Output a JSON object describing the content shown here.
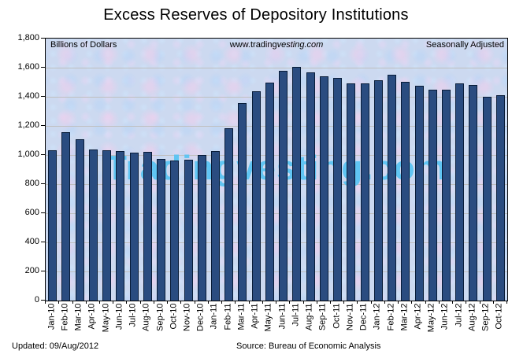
{
  "title": "Excess Reserves of Depository Institutions",
  "header": {
    "left": "Billions of Dollars",
    "center_prefix": "www.trading",
    "center_italic": "vesting.com",
    "right": "Seasonally Adjusted"
  },
  "watermark": "Tradingvesting.com",
  "footer": {
    "updated": "Updated: 09/Aug/2012",
    "source": "Source: Bureau of Economic Analysis"
  },
  "colors": {
    "bar_fill": "#2a4c80",
    "bar_border": "#081c38",
    "plot_background": "#ccd9f0",
    "gridline": "#bfbfbf",
    "plot_border": "#000000",
    "watermark": "#5ac4f2",
    "text": "#000000"
  },
  "y_axis": {
    "labels": [
      "1,800",
      "1,600",
      "1,400",
      "1,200",
      "1,000",
      "800",
      "600",
      "400",
      "200",
      "0"
    ],
    "max": 1800,
    "interval": 200
  },
  "chart_data": {
    "type": "bar",
    "title": "Excess Reserves of Depository Institutions",
    "ylabel": "Billions of Dollars",
    "xlabel": "",
    "ylim": [
      0,
      1800
    ],
    "ytick_interval": 200,
    "grid": true,
    "legend_position": "none",
    "categories": [
      "Jan-10",
      "Feb-10",
      "Mar-10",
      "Apr-10",
      "May-10",
      "Jun-10",
      "Jul-10",
      "Aug-10",
      "Sep-10",
      "Oct-10",
      "Nov-10",
      "Dec-10",
      "Jan-11",
      "Feb-11",
      "Mar-11",
      "Apr-11",
      "May-11",
      "Jun-11",
      "Jul-11",
      "Aug-11",
      "Sep-11",
      "Oct-11",
      "Nov-11",
      "Dec-11",
      "Jan-12",
      "Feb-12",
      "Mar-12",
      "Apr-12",
      "May-12",
      "Jun-12",
      "Jul-12",
      "Aug-12",
      "Sep-12",
      "Oct-12"
    ],
    "values": [
      1035,
      1155,
      1110,
      1040,
      1035,
      1025,
      1015,
      1020,
      975,
      965,
      970,
      1000,
      1030,
      1185,
      1355,
      1440,
      1495,
      1580,
      1605,
      1570,
      1540,
      1530,
      1490,
      1490,
      1515,
      1550,
      1505,
      1475,
      1450,
      1450,
      1490,
      1480,
      1400,
      1410
    ]
  }
}
